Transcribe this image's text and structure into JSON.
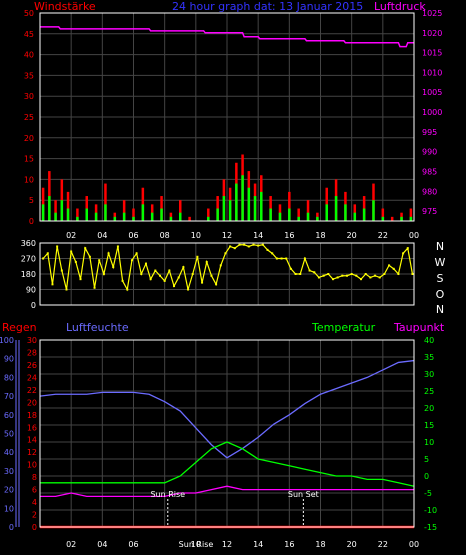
{
  "header": {
    "left_label": "Windstärke",
    "center_title": "24 hour graph dat: 13 Januar 2015",
    "right_label": "Luftdruck"
  },
  "compass": [
    "N",
    "W",
    "S",
    "O",
    "N"
  ],
  "lower_header": {
    "regen": "Regen",
    "luftfeuchte": "Luftfeuchte",
    "temperatur": "Temperatur",
    "taupunkt": "Taupunkt"
  },
  "annotations": {
    "sun_rise": "Sun Rise",
    "sun_set": "Sun Set",
    "sun_rise_axis": "Sun Rise"
  },
  "colors": {
    "background": "#000000",
    "frame": "#ffffff",
    "grid": "#444444",
    "wind": "#ff0000",
    "gust": "#00ff00",
    "pressure": "#ff00ff",
    "direction": "#ffff00",
    "humidity": "#6b6bff",
    "temperature": "#00ff00",
    "dewpoint": "#ff00ff",
    "rain": "#ff0000",
    "title": "#3333ff",
    "left_label": "#ff0000"
  },
  "chart_data": [
    {
      "type": "line",
      "title": "24 hour graph dat: 13 Januar 2015",
      "x_ticks": [
        "02",
        "04",
        "06",
        "08",
        "10",
        "12",
        "14",
        "16",
        "18",
        "20",
        "22",
        "00"
      ],
      "y_left_ticks": [
        "0",
        "5",
        "10",
        "15",
        "20",
        "25",
        "30",
        "35",
        "40",
        "45",
        "50"
      ],
      "y_left_range": [
        0,
        50
      ],
      "y_right_ticks": [
        "975",
        "980",
        "985",
        "990",
        "995",
        "1000",
        "1005",
        "1010",
        "1015",
        "1020",
        "1025"
      ],
      "y_right_range": [
        972.5,
        1025
      ],
      "x_range": [
        0,
        24
      ],
      "series": [
        {
          "name": "Windstärke",
          "axis": "left",
          "x": [
            0.2,
            0.6,
            1.0,
            1.4,
            1.8,
            2.4,
            3.0,
            3.6,
            4.2,
            4.8,
            5.4,
            6.0,
            6.6,
            7.2,
            7.8,
            8.4,
            9.0,
            9.6,
            10.2,
            10.8,
            11.4,
            11.8,
            12.2,
            12.6,
            13.0,
            13.4,
            13.8,
            14.2,
            14.8,
            15.4,
            16.0,
            16.6,
            17.2,
            17.8,
            18.4,
            19.0,
            19.6,
            20.2,
            20.8,
            21.4,
            22.0,
            22.6,
            23.2,
            23.8
          ],
          "values": [
            8,
            12,
            5,
            10,
            7,
            3,
            6,
            4,
            9,
            2,
            5,
            3,
            8,
            4,
            6,
            2,
            5,
            1,
            0,
            3,
            6,
            10,
            8,
            14,
            16,
            12,
            9,
            11,
            6,
            4,
            7,
            3,
            5,
            2,
            8,
            10,
            7,
            4,
            6,
            9,
            3,
            1,
            2,
            3
          ]
        },
        {
          "name": "Böen",
          "axis": "left",
          "x": [
            0.2,
            0.6,
            1.0,
            1.4,
            1.8,
            2.4,
            3.0,
            3.6,
            4.2,
            4.8,
            5.4,
            6.0,
            6.6,
            7.2,
            7.8,
            8.4,
            9.0,
            9.6,
            10.2,
            10.8,
            11.4,
            11.8,
            12.2,
            12.6,
            13.0,
            13.4,
            13.8,
            14.2,
            14.8,
            15.4,
            16.0,
            16.6,
            17.2,
            17.8,
            18.4,
            19.0,
            19.6,
            20.2,
            20.8,
            21.4,
            22.0,
            22.6,
            23.2,
            23.8
          ],
          "values": [
            4,
            6,
            2,
            5,
            3,
            1,
            3,
            2,
            4,
            1,
            2,
            1,
            4,
            2,
            3,
            1,
            2,
            0,
            0,
            1,
            3,
            6,
            5,
            9,
            11,
            8,
            6,
            7,
            3,
            2,
            3,
            1,
            2,
            1,
            4,
            6,
            4,
            2,
            3,
            5,
            1,
            0,
            1,
            1
          ]
        },
        {
          "name": "Luftdruck",
          "axis": "right",
          "x": [
            0,
            1.2,
            1.3,
            4.0,
            7.0,
            7.1,
            10.5,
            10.6,
            13.0,
            13.1,
            14.0,
            14.1,
            17.0,
            17.1,
            19.5,
            19.6,
            23.0,
            23.1,
            23.5,
            23.6,
            24
          ],
          "values": [
            1021.5,
            1021.5,
            1021.0,
            1021.0,
            1021.0,
            1020.5,
            1020.5,
            1020.0,
            1020.0,
            1019.0,
            1019.0,
            1018.5,
            1018.5,
            1018.0,
            1018.0,
            1017.5,
            1017.5,
            1016.5,
            1016.5,
            1017.5,
            1017.5
          ]
        }
      ]
    },
    {
      "type": "scatter",
      "y_ticks": [
        "0",
        "90",
        "180",
        "270",
        "360"
      ],
      "y_range": [
        0,
        360
      ],
      "x_range": [
        0,
        24
      ],
      "series": [
        {
          "name": "Windrichtung",
          "x": [
            0.2,
            0.5,
            0.8,
            1.1,
            1.4,
            1.7,
            2.0,
            2.3,
            2.6,
            2.9,
            3.2,
            3.5,
            3.8,
            4.1,
            4.4,
            4.7,
            5.0,
            5.3,
            5.6,
            5.9,
            6.2,
            6.5,
            6.8,
            7.1,
            7.4,
            7.7,
            8.0,
            8.3,
            8.6,
            8.9,
            9.2,
            9.5,
            9.8,
            10.1,
            10.4,
            10.7,
            11.0,
            11.3,
            11.6,
            11.9,
            12.2,
            12.5,
            12.8,
            13.1,
            13.4,
            13.7,
            14.0,
            14.3,
            14.6,
            14.9,
            15.2,
            15.5,
            15.8,
            16.1,
            16.4,
            16.7,
            17.0,
            17.3,
            17.6,
            17.9,
            18.2,
            18.5,
            18.8,
            19.1,
            19.4,
            19.7,
            20.0,
            20.3,
            20.6,
            20.9,
            21.2,
            21.5,
            21.8,
            22.1,
            22.4,
            22.7,
            23.0,
            23.3,
            23.6,
            23.9
          ],
          "values": [
            270,
            300,
            120,
            340,
            200,
            90,
            310,
            250,
            150,
            330,
            280,
            100,
            260,
            180,
            300,
            220,
            340,
            140,
            90,
            260,
            300,
            180,
            240,
            150,
            200,
            170,
            140,
            200,
            110,
            160,
            220,
            90,
            180,
            280,
            130,
            250,
            170,
            120,
            230,
            300,
            340,
            330,
            350,
            350,
            340,
            350,
            345,
            350,
            320,
            300,
            270,
            270,
            270,
            210,
            180,
            180,
            270,
            200,
            190,
            160,
            170,
            180,
            150,
            160,
            170,
            170,
            180,
            170,
            150,
            180,
            160,
            170,
            160,
            180,
            230,
            210,
            180,
            300,
            330,
            180
          ]
        }
      ]
    },
    {
      "type": "line",
      "x_ticks": [
        "02",
        "04",
        "06",
        "08",
        "10",
        "12",
        "14",
        "16",
        "18",
        "20",
        "22",
        "00"
      ],
      "x_range": [
        0,
        24
      ],
      "y_humidity_ticks": [
        "0",
        "10",
        "20",
        "30",
        "40",
        "50",
        "60",
        "70",
        "80",
        "90",
        "100"
      ],
      "y_humidity_range": [
        0,
        100
      ],
      "y_rain_ticks": [
        "0",
        "2",
        "4",
        "6",
        "8",
        "10",
        "12",
        "14",
        "16",
        "18",
        "20",
        "22",
        "24",
        "26",
        "28",
        "30"
      ],
      "y_rain_range": [
        0,
        30
      ],
      "y_temp_ticks": [
        "-15",
        "-10",
        "-5",
        "0",
        "5",
        "10",
        "15",
        "20",
        "25",
        "30",
        "35",
        "40"
      ],
      "y_temp_range": [
        -15,
        40
      ],
      "series": [
        {
          "name": "Luftfeuchte",
          "axis": "humidity",
          "x": [
            0,
            1,
            2,
            3,
            4,
            5,
            6,
            7,
            8,
            9,
            10,
            11,
            12,
            13,
            14,
            15,
            16,
            17,
            18,
            19,
            20,
            21,
            22,
            23,
            24
          ],
          "values": [
            70,
            71,
            71,
            71,
            72,
            72,
            72,
            71,
            67,
            62,
            53,
            44,
            37,
            42,
            48,
            55,
            60,
            66,
            71,
            74,
            77,
            80,
            84,
            88,
            89
          ]
        },
        {
          "name": "Temperatur",
          "axis": "temp",
          "x": [
            0,
            1,
            2,
            3,
            4,
            5,
            6,
            7,
            8,
            9,
            10,
            11,
            12,
            13,
            14,
            15,
            16,
            17,
            18,
            19,
            20,
            21,
            22,
            23,
            24
          ],
          "values": [
            -2,
            -2,
            -2,
            -2,
            -2,
            -2,
            -2,
            -2,
            -2,
            0,
            4,
            8,
            10,
            8,
            5,
            4,
            3,
            2,
            1,
            0,
            0,
            -1,
            -1,
            -2,
            -3
          ]
        },
        {
          "name": "Taupunkt",
          "axis": "temp",
          "x": [
            0,
            1,
            2,
            3,
            4,
            5,
            6,
            7,
            8,
            9,
            10,
            11,
            12,
            13,
            14,
            15,
            16,
            17,
            18,
            19,
            20,
            21,
            22,
            23,
            24
          ],
          "values": [
            -6,
            -6,
            -5,
            -6,
            -6,
            -6,
            -6,
            -6,
            -6,
            -5,
            -5,
            -4,
            -3,
            -4,
            -4,
            -4,
            -4,
            -4,
            -4,
            -4,
            -4,
            -4,
            -4,
            -4,
            -4
          ]
        },
        {
          "name": "Regen",
          "axis": "rain",
          "x": [
            0,
            24
          ],
          "values": [
            0,
            0
          ]
        }
      ],
      "annotations": [
        {
          "label": "Sun Rise",
          "x": 8.2
        },
        {
          "label": "Sun Set",
          "x": 16.9
        }
      ]
    }
  ]
}
